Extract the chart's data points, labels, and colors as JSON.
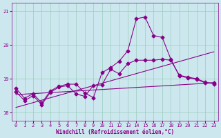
{
  "bg_color": "#cce8ee",
  "grid_color": "#99ccbb",
  "line_color": "#880088",
  "marker": "D",
  "markersize": 2.5,
  "linewidth": 0.8,
  "xlim": [
    -0.5,
    23.5
  ],
  "ylim": [
    17.75,
    21.25
  ],
  "yticks": [
    18,
    19,
    20,
    21
  ],
  "xticks": [
    0,
    1,
    2,
    3,
    4,
    5,
    6,
    7,
    8,
    9,
    10,
    11,
    12,
    13,
    14,
    15,
    16,
    17,
    18,
    19,
    20,
    21,
    22,
    23
  ],
  "xlabel": "Windchill (Refroidissement éolien,°C)",
  "series1_x": [
    0,
    1,
    2,
    3,
    4,
    5,
    6,
    7,
    8,
    9,
    10,
    11,
    12,
    13,
    14,
    15,
    16,
    17,
    18,
    19,
    20,
    21,
    22,
    23
  ],
  "series1_y": [
    18.72,
    18.42,
    18.56,
    18.28,
    18.64,
    18.78,
    18.84,
    18.84,
    18.58,
    18.44,
    19.18,
    19.33,
    19.52,
    19.83,
    20.78,
    20.83,
    20.28,
    20.23,
    19.58,
    19.08,
    19.03,
    18.98,
    18.88,
    18.88
  ],
  "series2_x": [
    0,
    1,
    2,
    3,
    4,
    5,
    6,
    7,
    8,
    9,
    10,
    11,
    12,
    13,
    14,
    15,
    16,
    17,
    18,
    19,
    20,
    21,
    22,
    23
  ],
  "series2_y": [
    18.62,
    18.35,
    18.5,
    18.23,
    18.6,
    18.75,
    18.8,
    18.55,
    18.48,
    18.8,
    18.82,
    19.28,
    19.15,
    19.45,
    19.55,
    19.55,
    19.55,
    19.58,
    19.55,
    19.1,
    19.05,
    19.0,
    18.9,
    18.85
  ],
  "trend1_x": [
    0,
    23
  ],
  "trend1_y": [
    18.53,
    18.88
  ],
  "trend2_x": [
    0,
    23
  ],
  "trend2_y": [
    18.15,
    19.8
  ]
}
